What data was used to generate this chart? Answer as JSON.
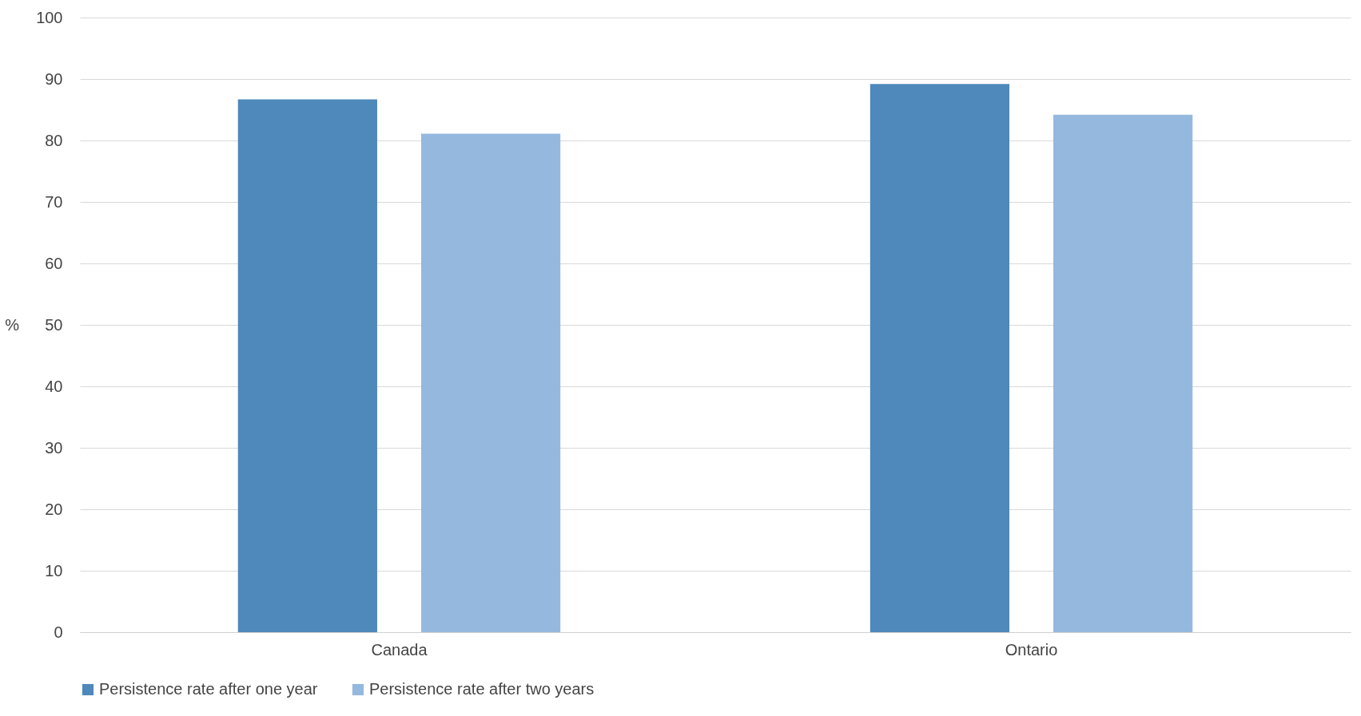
{
  "chart_data": {
    "type": "bar",
    "ylabel": "%",
    "categories": [
      "Canada",
      "Ontario"
    ],
    "series": [
      {
        "name": "Persistence rate after one year",
        "color": "#4f88bb",
        "values": [
          86.7,
          89.2
        ]
      },
      {
        "name": "Persistence rate after two years",
        "color": "#95b8df",
        "values": [
          81.1,
          84.2
        ]
      }
    ],
    "ylim": [
      0,
      100
    ],
    "yticks": [
      0,
      10,
      20,
      30,
      40,
      50,
      60,
      70,
      80,
      90,
      100
    ],
    "grid": "y",
    "legend": "bottom"
  }
}
